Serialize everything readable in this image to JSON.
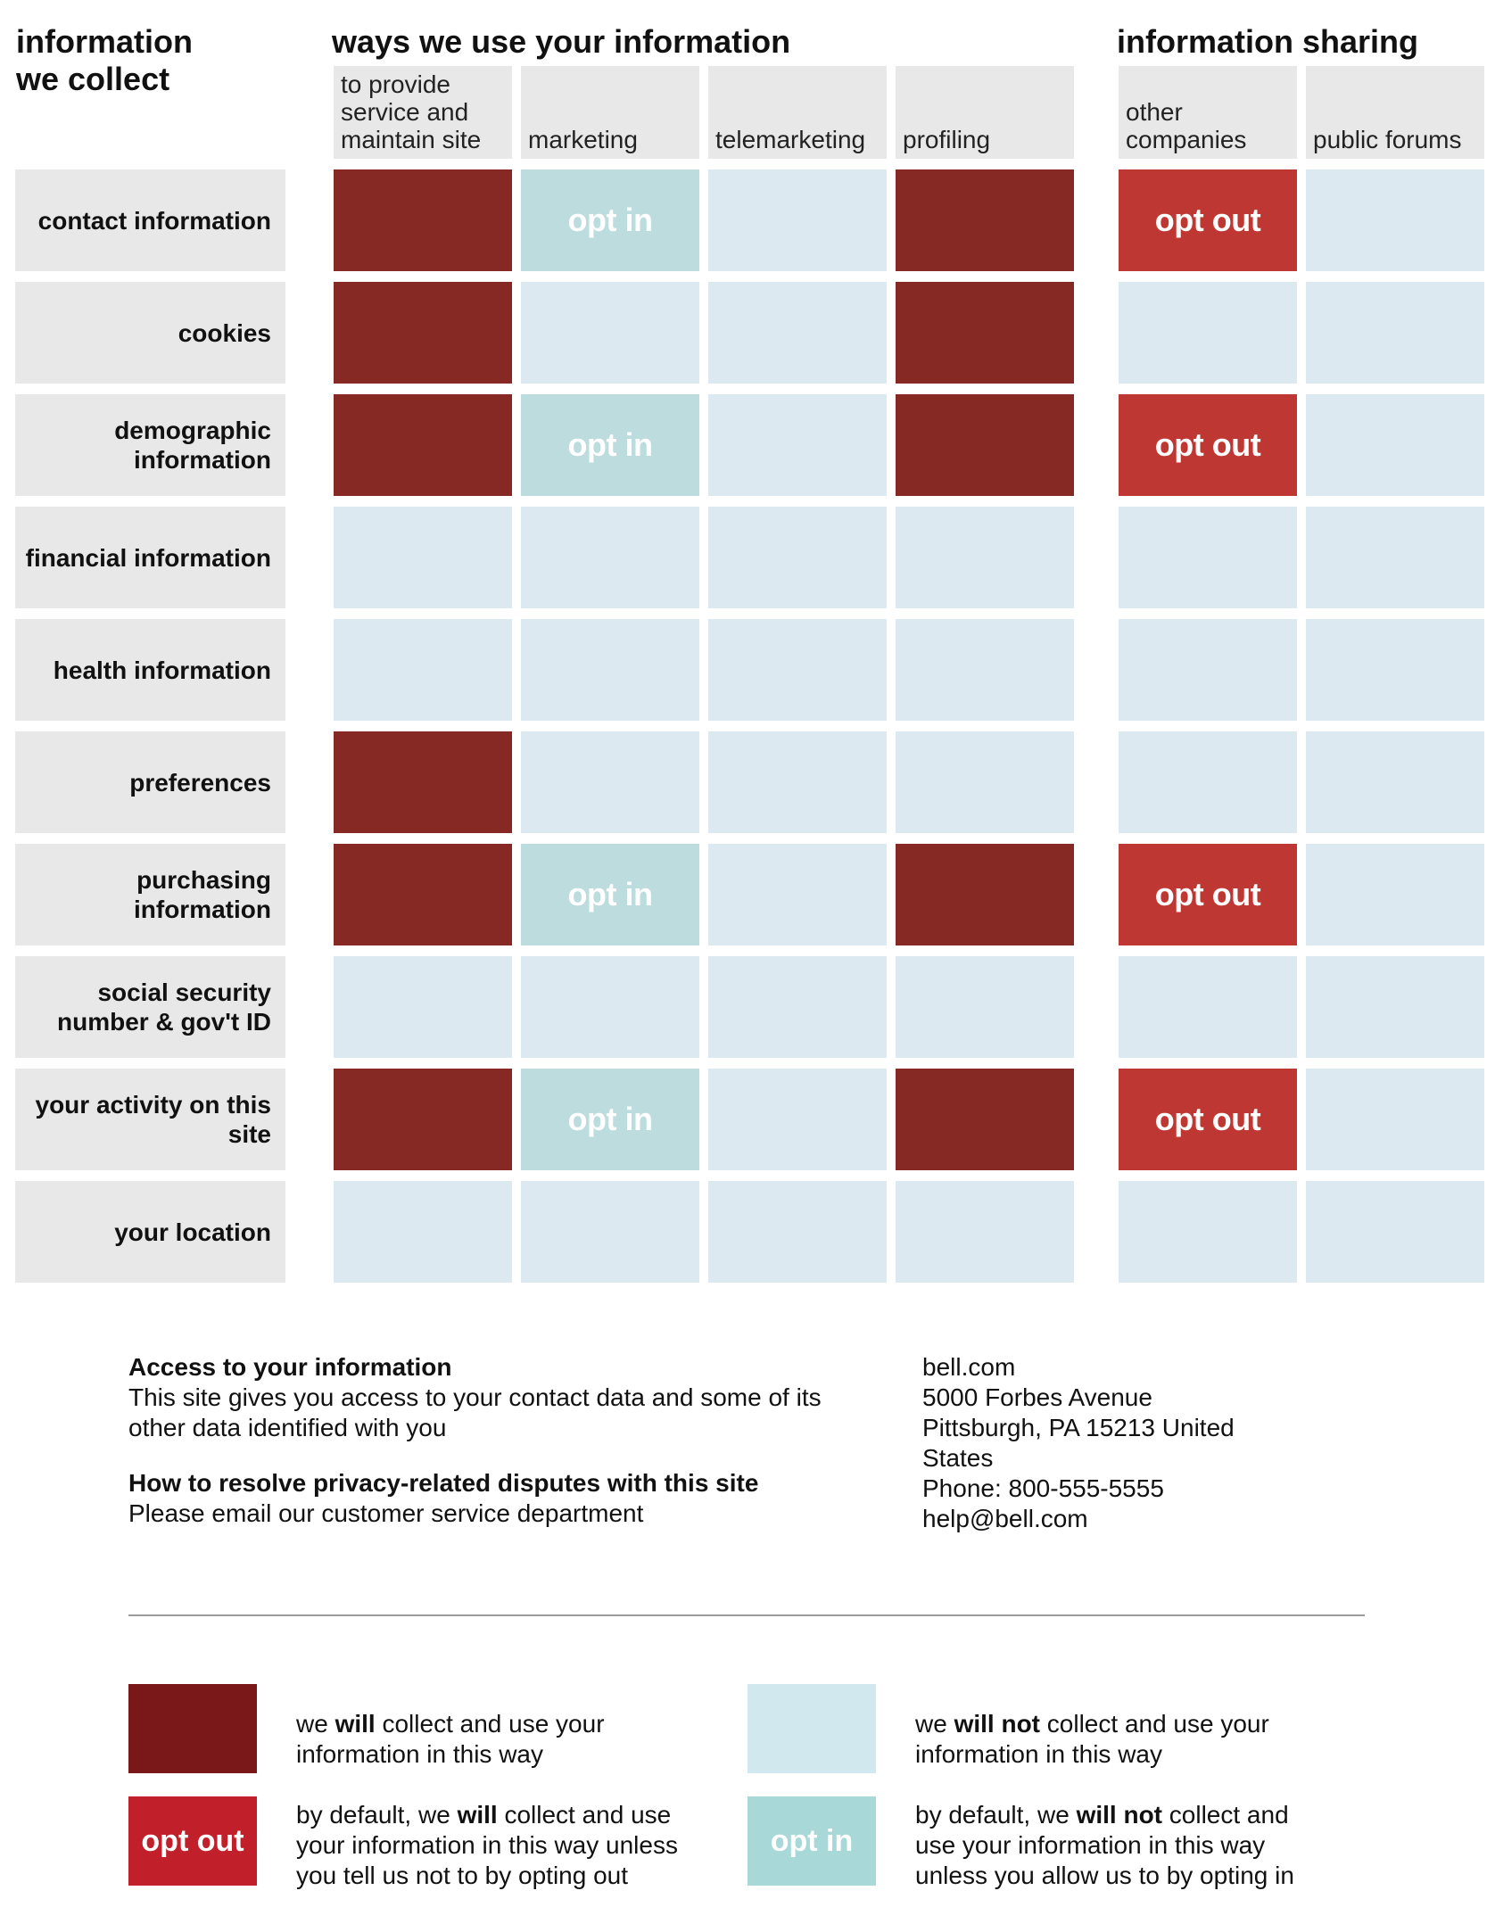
{
  "headers": {
    "collect_line1": "information",
    "collect_line2": "we collect",
    "ways": "ways we use your information",
    "sharing": "information sharing"
  },
  "columns": [
    "to provide service and maintain site",
    "marketing",
    "telemarketing",
    "profiling",
    "other companies",
    "public forums"
  ],
  "rows": [
    {
      "label": "contact information",
      "cells": [
        "yes",
        "optin",
        "no",
        "yes",
        "optout",
        "no"
      ]
    },
    {
      "label": "cookies",
      "cells": [
        "yes",
        "no",
        "no",
        "yes",
        "no",
        "no"
      ]
    },
    {
      "label": "demographic information",
      "cells": [
        "yes",
        "optin",
        "no",
        "yes",
        "optout",
        "no"
      ]
    },
    {
      "label": "financial information",
      "cells": [
        "no",
        "no",
        "no",
        "no",
        "no",
        "no"
      ]
    },
    {
      "label": "health information",
      "cells": [
        "no",
        "no",
        "no",
        "no",
        "no",
        "no"
      ]
    },
    {
      "label": "preferences",
      "cells": [
        "yes",
        "no",
        "no",
        "no",
        "no",
        "no"
      ]
    },
    {
      "label": "purchasing information",
      "cells": [
        "yes",
        "optin",
        "no",
        "yes",
        "optout",
        "no"
      ]
    },
    {
      "label": "social security number & gov't ID",
      "cells": [
        "no",
        "no",
        "no",
        "no",
        "no",
        "no"
      ]
    },
    {
      "label": "your activity on this site",
      "cells": [
        "yes",
        "optin",
        "no",
        "yes",
        "optout",
        "no"
      ]
    },
    {
      "label": "your location",
      "cells": [
        "no",
        "no",
        "no",
        "no",
        "no",
        "no"
      ]
    }
  ],
  "cell_labels": {
    "optin": "opt in",
    "optout": "opt out"
  },
  "colors": {
    "yes": "#862823",
    "no": "#dde9f1",
    "optin": "#bcdcde",
    "optout": "#bf3733",
    "header_gray": "#e8e8e8"
  },
  "access": {
    "title": "Access to your information",
    "text": "This site gives you access to your contact data and some of its other data identified with you"
  },
  "disputes": {
    "title": "How to resolve privacy-related disputes with this site",
    "text": "Please email our customer service department"
  },
  "contact": {
    "site": "bell.com",
    "street": "5000 Forbes Avenue",
    "city_line1": "Pittsburgh, PA 15213 United",
    "city_line2": "States",
    "phone": "Phone: 800-555-5555",
    "email": "help@bell.com"
  },
  "legend": {
    "will": {
      "pre": "we ",
      "bold": "will",
      "post": " collect and use your information in this way"
    },
    "will_not": {
      "pre": "we ",
      "bold": "will not",
      "post": " collect and use your information in this way"
    },
    "optout": {
      "swatch": "opt out",
      "pre": "by default, we ",
      "bold": "will",
      "post": " collect and use your information in this way unless you tell us not to by opting out"
    },
    "optin": {
      "swatch": "opt in",
      "pre": "by default, we ",
      "bold": "will not",
      "post": " collect and use your information in this way unless you allow us to by opting in"
    }
  }
}
